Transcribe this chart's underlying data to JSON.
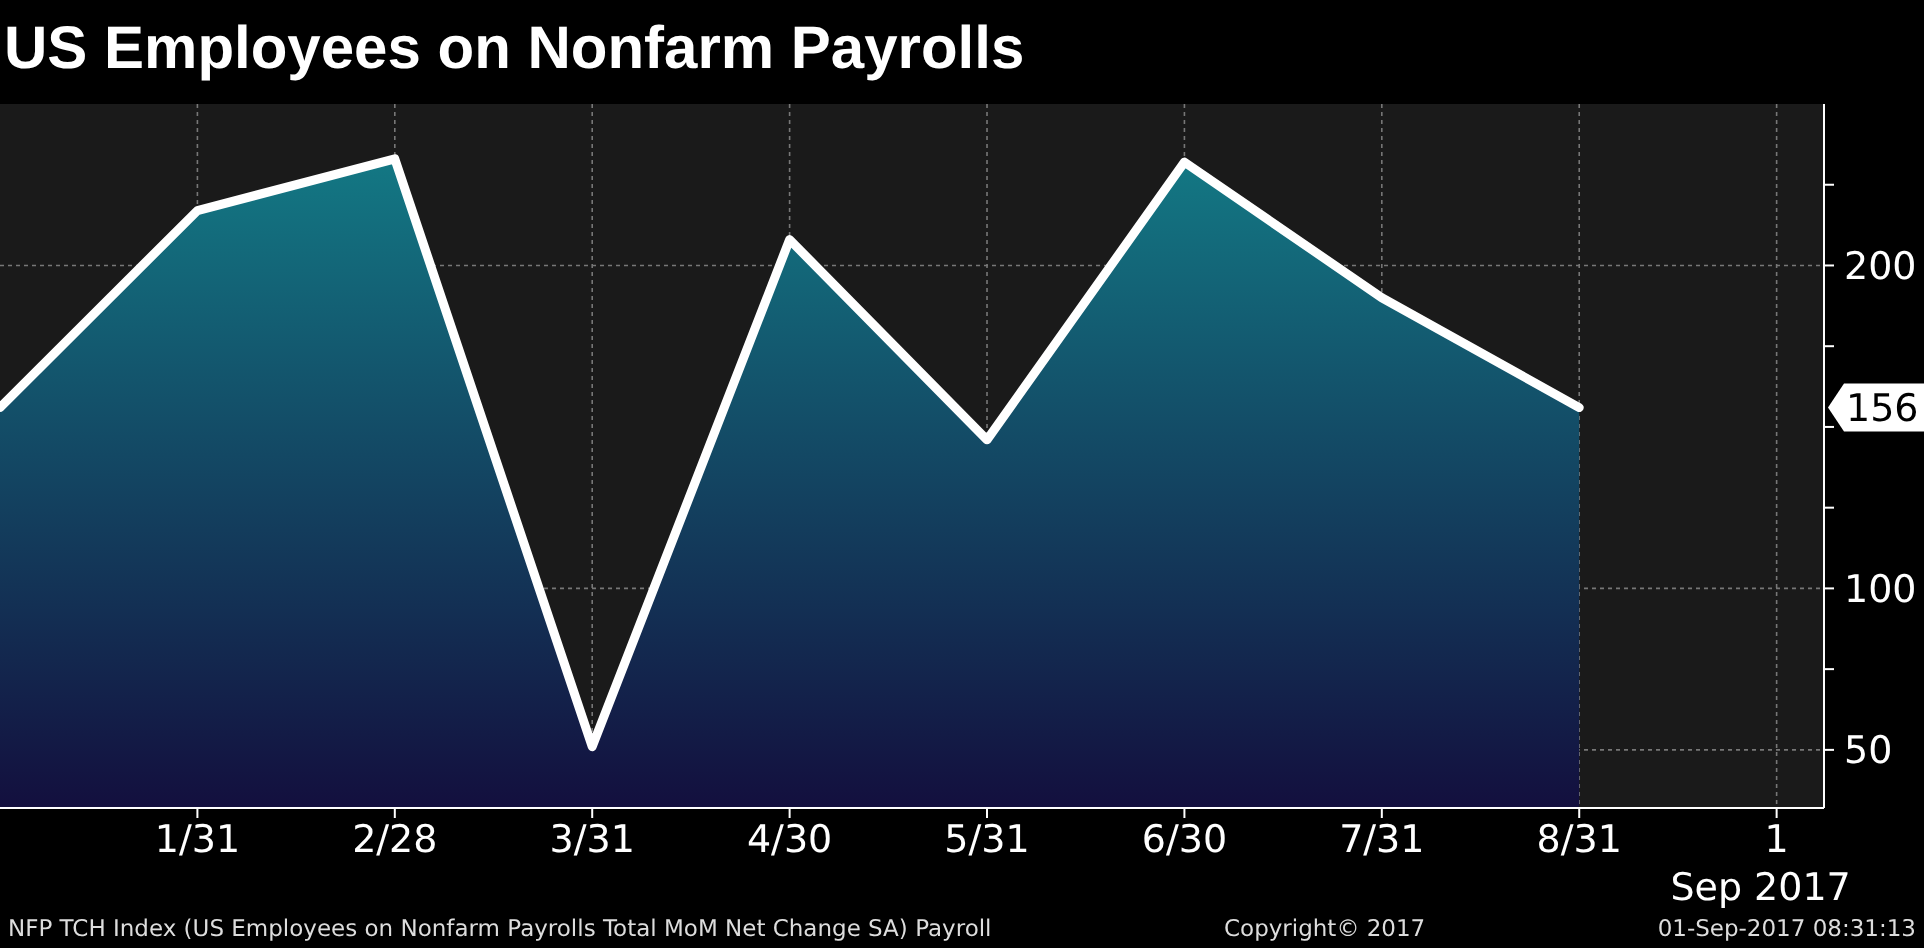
{
  "chart_data": {
    "type": "area",
    "title": "US Employees on Nonfarm Payrolls",
    "categories": [
      null,
      "1/31",
      "2/28",
      "3/31",
      "4/30",
      "5/31",
      "6/30",
      "7/31",
      "8/31",
      "1 Sep 2017"
    ],
    "series": [
      {
        "color": "#ffffff",
        "values": [
          156,
          217,
          233,
          51,
          208,
          146,
          232,
          190,
          156,
          null
        ]
      }
    ],
    "ylim": [
      32,
      250
    ],
    "yticks": [
      50,
      {
        "value": 75,
        "label": null
      },
      100,
      {
        "value": 125,
        "label": null
      },
      {
        "value": 150,
        "label": null
      },
      {
        "value": 175,
        "label": null
      },
      200,
      {
        "value": 225,
        "label": null
      }
    ],
    "grid": true,
    "annotations": [
      "156",
      "NFP TCH Index (US Employees on Nonfarm Payrolls Total MoM Net Change SA) Payroll",
      "Copyright© 2017",
      "01-Sep-2017 08:31:13"
    ]
  }
}
